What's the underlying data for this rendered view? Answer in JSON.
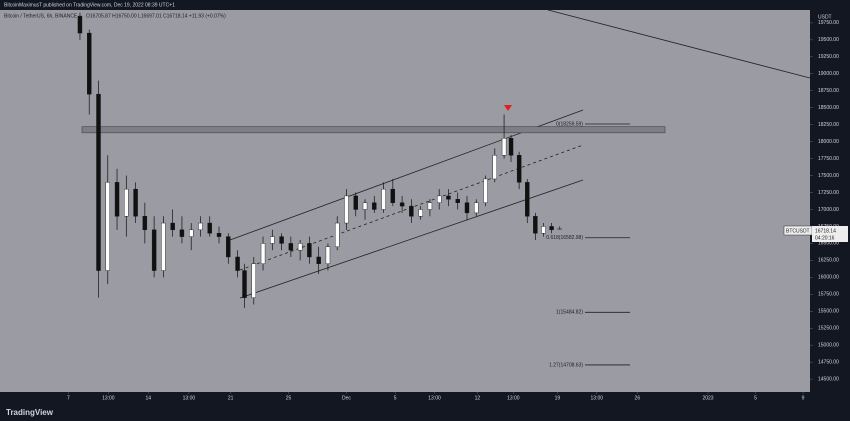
{
  "chart_data": {
    "type": "candlestick",
    "publisher_line": "BitcoinMaximusT published on TradingView.com, Dec 19, 2022 08:39 UTC+1",
    "title": "Bitcoin / TetherUS, 6h, BINANCE",
    "ohlc_line": "O16705.87 H16750.00 L16697.01 C16718.14 +11.93 (+0.07%)",
    "currency": "USDT",
    "symbol": "BTCUSDT",
    "price_tag": "16718.14",
    "countdown": "04:20:16",
    "brand": "TradingView",
    "up_color": "#ffffff",
    "down_color": "#111111",
    "x": [
      1.0,
      1.8,
      2.6,
      3.4,
      4.2,
      5.0,
      5.8,
      6.6,
      7.4,
      8.2,
      9.0,
      9.8,
      10.6,
      11.4,
      12.2,
      13.0,
      13.8,
      14.6,
      15.2,
      16.0,
      16.8,
      17.6,
      18.4,
      19.2,
      20.0,
      20.8,
      21.6,
      22.4,
      23.2,
      24.0,
      24.8,
      25.6,
      26.4,
      27.2,
      28.0,
      28.8,
      29.6,
      30.4,
      31.2,
      32.0,
      32.8,
      33.6,
      34.4,
      35.2,
      36.0,
      36.8,
      37.6,
      38.2,
      38.9,
      39.6,
      40.3,
      41.0,
      41.7,
      42.4
    ],
    "open": [
      19850,
      19600,
      18700,
      16100,
      17400,
      16900,
      17300,
      16900,
      16700,
      16100,
      16800,
      16700,
      16600,
      16700,
      16800,
      16650,
      16600,
      16300,
      16100,
      15700,
      16200,
      16500,
      16600,
      16500,
      16400,
      16500,
      16300,
      16200,
      16450,
      16800,
      17200,
      17000,
      17100,
      17000,
      17300,
      17100,
      17050,
      16900,
      17000,
      17100,
      17200,
      17150,
      17100,
      16950,
      17100,
      17450,
      17800,
      18050,
      17800,
      17400,
      16900,
      16650,
      16750,
      16705.87
    ],
    "high": [
      19900,
      19650,
      18900,
      17800,
      17600,
      17500,
      17400,
      17100,
      16900,
      16900,
      17000,
      16900,
      16800,
      16900,
      16900,
      16750,
      16650,
      16400,
      16200,
      16300,
      16600,
      16700,
      16650,
      16600,
      16550,
      16600,
      16450,
      16500,
      16900,
      17300,
      17250,
      17150,
      17200,
      17400,
      17450,
      17200,
      17150,
      17050,
      17150,
      17300,
      17300,
      17250,
      17200,
      17150,
      17500,
      17900,
      18400,
      18100,
      17850,
      17450,
      16950,
      16800,
      16800,
      16750
    ],
    "low": [
      19500,
      18400,
      15700,
      15900,
      16700,
      16600,
      16800,
      16500,
      16000,
      16000,
      16600,
      16500,
      16400,
      16600,
      16600,
      16500,
      16200,
      16000,
      15550,
      15600,
      16100,
      16400,
      16400,
      16300,
      16250,
      16200,
      16050,
      16100,
      16400,
      16700,
      16900,
      16850,
      16950,
      16950,
      17050,
      16950,
      16800,
      16850,
      16900,
      17000,
      17050,
      17000,
      16850,
      16900,
      17050,
      17400,
      17750,
      17700,
      17300,
      16800,
      16550,
      16600,
      16650,
      16697.01
    ],
    "close": [
      19600,
      18700,
      16100,
      17400,
      16900,
      17300,
      16900,
      16700,
      16100,
      16800,
      16700,
      16600,
      16700,
      16800,
      16650,
      16600,
      16300,
      16100,
      15700,
      16200,
      16500,
      16600,
      16500,
      16400,
      16500,
      16300,
      16200,
      16450,
      16800,
      17200,
      17000,
      17100,
      17000,
      17300,
      17100,
      17050,
      16900,
      17000,
      17100,
      17200,
      17150,
      17100,
      16950,
      17100,
      17450,
      17800,
      18050,
      17800,
      17400,
      16900,
      16650,
      16750,
      16700,
      16718.14
    ],
    "xlim": [
      -5.9,
      64
    ],
    "ylim": [
      14310,
      19940
    ],
    "xticks": [
      {
        "value": 0,
        "label": "7"
      },
      {
        "value": 3.45,
        "label": "13:00"
      },
      {
        "value": 6.9,
        "label": "14"
      },
      {
        "value": 10.4,
        "label": "13:00"
      },
      {
        "value": 14.0,
        "label": "21"
      },
      {
        "value": 19.0,
        "label": "25"
      },
      {
        "value": 24.0,
        "label": "Dec"
      },
      {
        "value": 28.2,
        "label": "5"
      },
      {
        "value": 31.6,
        "label": "13:00"
      },
      {
        "value": 35.3,
        "label": "12"
      },
      {
        "value": 38.4,
        "label": "13:00"
      },
      {
        "value": 42.2,
        "label": "19"
      },
      {
        "value": 45.6,
        "label": "13:00"
      },
      {
        "value": 49.1,
        "label": "26"
      },
      {
        "value": 55.2,
        "label": "2023"
      },
      {
        "value": 59.3,
        "label": "5"
      },
      {
        "value": 63.4,
        "label": "9"
      }
    ],
    "yticks": [
      {
        "value": 19750,
        "label": "19750.00"
      },
      {
        "value": 19500,
        "label": "19500.00"
      },
      {
        "value": 19250,
        "label": "19250.00"
      },
      {
        "value": 19000,
        "label": "19000.00"
      },
      {
        "value": 18750,
        "label": "18750.00"
      },
      {
        "value": 18500,
        "label": "18500.00"
      },
      {
        "value": 18250,
        "label": "18250.00"
      },
      {
        "value": 18000,
        "label": "18000.00"
      },
      {
        "value": 17750,
        "label": "17750.00"
      },
      {
        "value": 17500,
        "label": "17500.00"
      },
      {
        "value": 17250,
        "label": "17250.00"
      },
      {
        "value": 17000,
        "label": "17000.00"
      },
      {
        "value": 16750,
        "label": "16750.00"
      },
      {
        "value": 16500,
        "label": "16500.00"
      },
      {
        "value": 16250,
        "label": "16250.00"
      },
      {
        "value": 16000,
        "label": "16000.00"
      },
      {
        "value": 15750,
        "label": "15750.00"
      },
      {
        "value": 15500,
        "label": "15500.00"
      },
      {
        "value": 15250,
        "label": "15250.00"
      },
      {
        "value": 15000,
        "label": "15000.00"
      },
      {
        "value": 14750,
        "label": "14750.00"
      },
      {
        "value": 14500,
        "label": "14500.00"
      }
    ],
    "resistance_zone": [
      18130,
      18220
    ],
    "levels": [
      {
        "value": 18259.59,
        "label": "0(18259.59)"
      },
      {
        "value": 16582.98,
        "label": "0.618(16582.98)"
      },
      {
        "value": 15484.82,
        "label": "1(15484.82)"
      },
      {
        "value": 14708.63,
        "label": "1.27(14708.63)"
      }
    ]
  }
}
